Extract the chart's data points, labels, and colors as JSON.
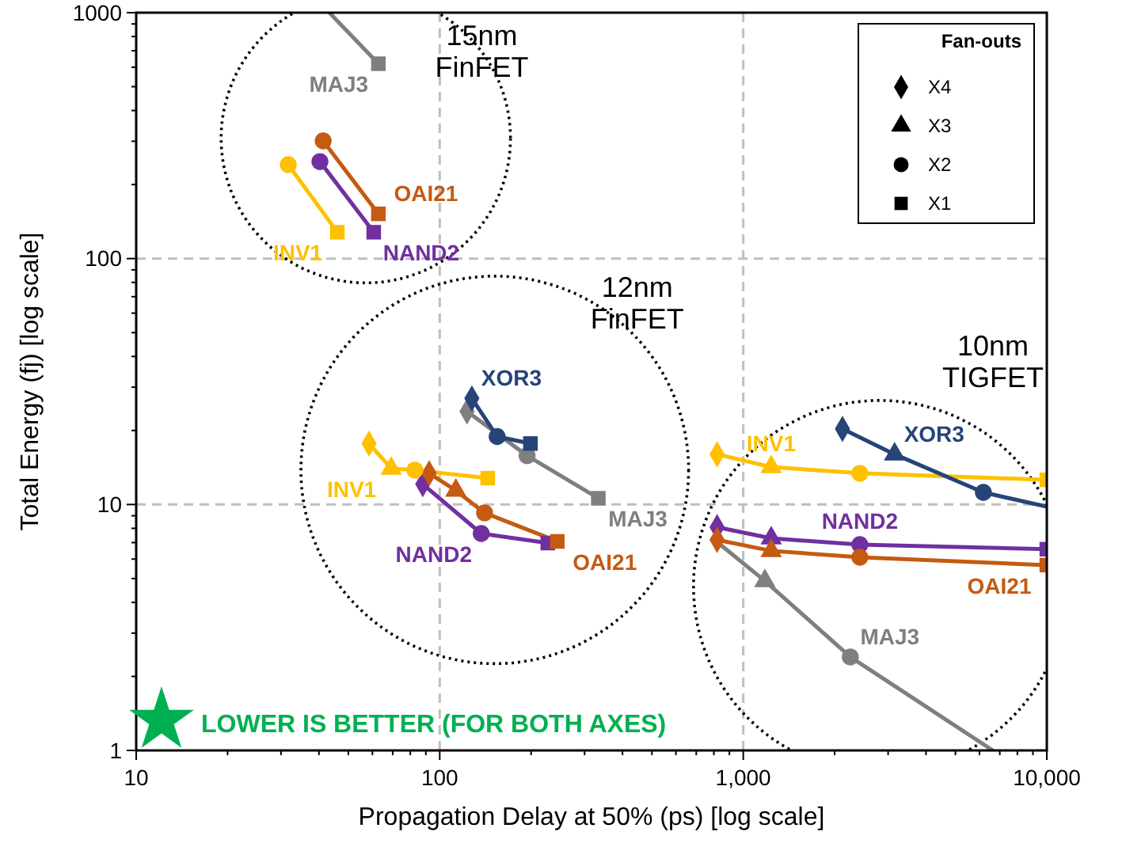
{
  "chart_data": {
    "type": "scatter",
    "xlabel": "Propagation Delay at 50% (ps) [log scale]",
    "ylabel": "Total Energy (fj) [log scale]",
    "legend_title": "Fan-outs",
    "legend": "top right",
    "grid": true,
    "log": "xy",
    "xlim": [
      10,
      10000
    ],
    "ylim": [
      1,
      1000
    ],
    "xticks": [
      10,
      {
        "value": 20,
        "label": null
      },
      {
        "value": 30,
        "label": null
      },
      {
        "value": 40,
        "label": null
      },
      {
        "value": 50,
        "label": null
      },
      {
        "value": 60,
        "label": null
      },
      {
        "value": 70,
        "label": null
      },
      {
        "value": 80,
        "label": null
      },
      {
        "value": 90,
        "label": null
      },
      100,
      {
        "value": 200,
        "label": null
      },
      {
        "value": 300,
        "label": null
      },
      {
        "value": 400,
        "label": null
      },
      {
        "value": 500,
        "label": null
      },
      {
        "value": 600,
        "label": null
      },
      {
        "value": 700,
        "label": null
      },
      {
        "value": 800,
        "label": null
      },
      {
        "value": 900,
        "label": null
      },
      {
        "value": 1000,
        "label": "1,000"
      },
      {
        "value": 2000,
        "label": null
      },
      {
        "value": 3000,
        "label": null
      },
      {
        "value": 4000,
        "label": null
      },
      {
        "value": 5000,
        "label": null
      },
      {
        "value": 6000,
        "label": null
      },
      {
        "value": 7000,
        "label": null
      },
      {
        "value": 8000,
        "label": null
      },
      {
        "value": 9000,
        "label": null
      },
      {
        "value": 10000,
        "label": "10,000"
      }
    ],
    "yticks": [
      1,
      {
        "value": 2,
        "label": null
      },
      {
        "value": 3,
        "label": null
      },
      {
        "value": 4,
        "label": null
      },
      {
        "value": 5,
        "label": null
      },
      {
        "value": 6,
        "label": null
      },
      {
        "value": 7,
        "label": null
      },
      {
        "value": 8,
        "label": null
      },
      {
        "value": 9,
        "label": null
      },
      10,
      {
        "value": 20,
        "label": null
      },
      {
        "value": 30,
        "label": null
      },
      {
        "value": 40,
        "label": null
      },
      {
        "value": 50,
        "label": null
      },
      {
        "value": 60,
        "label": null
      },
      {
        "value": 70,
        "label": null
      },
      {
        "value": 80,
        "label": null
      },
      {
        "value": 90,
        "label": null
      },
      100,
      {
        "value": 200,
        "label": null
      },
      {
        "value": 300,
        "label": null
      },
      {
        "value": 400,
        "label": null
      },
      {
        "value": 500,
        "label": null
      },
      {
        "value": 600,
        "label": null
      },
      {
        "value": 700,
        "label": null
      },
      {
        "value": 800,
        "label": null
      },
      {
        "value": 900,
        "label": null
      },
      1000
    ],
    "series": [
      {
        "type": "line",
        "name": "MAJ3",
        "color": "#7f7f7f",
        "x": [
          43.3,
          62.8
        ],
        "values": [
          1000,
          620
        ]
      },
      {
        "type": "line",
        "name": "OAI21",
        "color": "#c55a11",
        "x": [
          41.3,
          62.8
        ],
        "values": [
          301,
          152
        ]
      },
      {
        "type": "line",
        "name": "INV1",
        "color": "#ffc000",
        "x": [
          31.7,
          46
        ],
        "values": [
          241,
          128
        ]
      },
      {
        "type": "line",
        "name": "NAND2",
        "color": "#7030a0",
        "x": [
          40.3,
          60.6
        ],
        "values": [
          248,
          128
        ]
      },
      {
        "type": "line",
        "name": "MAJ3",
        "color": "#7f7f7f",
        "x": [
          123,
          194,
          333
        ],
        "values": [
          23.9,
          15.8,
          10.6
        ]
      },
      {
        "type": "line",
        "name": "XOR3",
        "color": "#264478",
        "x": [
          127.6,
          154.6,
          199
        ],
        "values": [
          27,
          18.9,
          17.7
        ]
      },
      {
        "type": "line",
        "name": "INV1",
        "color": "#ffc000",
        "x": [
          58.5,
          69.2,
          82.8,
          143.9
        ],
        "values": [
          17.7,
          14,
          13.8,
          12.8
        ]
      },
      {
        "type": "line",
        "name": "NAND2",
        "color": "#7030a0",
        "x": [
          87.9,
          137,
          227
        ],
        "values": [
          12.1,
          7.62,
          6.97
        ]
      },
      {
        "type": "line",
        "name": "OAI21",
        "color": "#c55a11",
        "x": [
          92.3,
          113,
          140.5,
          244
        ],
        "values": [
          13.4,
          11.4,
          9.25,
          7.08
        ]
      },
      {
        "type": "line",
        "name": "INV1",
        "color": "#ffc000",
        "x": [
          820,
          1236,
          2421,
          10000
        ],
        "values": [
          16,
          14.2,
          13.4,
          12.6
        ]
      },
      {
        "type": "line",
        "name": "XOR3",
        "color": "#264478",
        "x": [
          2122,
          3152,
          6180,
          10000
        ],
        "values": [
          20.3,
          16,
          11.2,
          9.8
        ]
      },
      {
        "type": "line",
        "name": "MAJ3",
        "color": "#7f7f7f",
        "x": [
          792,
          1178,
          2252,
          6640
        ],
        "values": [
          7.29,
          4.89,
          2.4,
          1
        ]
      },
      {
        "type": "line",
        "name": "NAND2",
        "color": "#7030a0",
        "x": [
          820,
          1236,
          2421,
          10000
        ],
        "values": [
          8.09,
          7.29,
          6.87,
          6.58
        ]
      },
      {
        "type": "line",
        "name": "OAI21",
        "color": "#c55a11",
        "x": [
          820,
          1236,
          2421,
          10000
        ],
        "values": [
          7.18,
          6.48,
          6.1,
          5.67
        ]
      },
      {
        "marker": "diamond",
        "color": "#000000",
        "x": [
          123,
          127.6,
          58.5,
          87.9,
          92.3,
          820,
          2122,
          820,
          820
        ],
        "values": [
          23.9,
          27,
          17.7,
          12.1,
          13.4,
          16,
          20.3,
          8.09,
          7.18
        ],
        "colors": [
          "#7f7f7f",
          "#264478",
          "#ffc000",
          "#7030a0",
          "#c55a11",
          "#ffc000",
          "#264478",
          "#7030a0",
          "#c55a11"
        ]
      },
      {
        "marker": "triangle",
        "color": "#000000",
        "x": [
          69.2,
          113,
          1236,
          3152,
          1178,
          1236,
          1236
        ],
        "values": [
          14,
          11.4,
          14.2,
          16,
          4.89,
          7.29,
          6.48
        ],
        "colors": [
          "#ffc000",
          "#c55a11",
          "#ffc000",
          "#264478",
          "#7f7f7f",
          "#7030a0",
          "#c55a11"
        ]
      },
      {
        "marker": "circle",
        "color": "#000000",
        "x": [
          41.3,
          31.7,
          40.3,
          194,
          154.6,
          82.8,
          137,
          140.5,
          2421,
          6180,
          2252,
          2421,
          2421
        ],
        "values": [
          301,
          241,
          248,
          15.8,
          18.9,
          13.8,
          7.62,
          9.25,
          13.4,
          11.2,
          2.4,
          6.87,
          6.1
        ],
        "colors": [
          "#c55a11",
          "#ffc000",
          "#7030a0",
          "#7f7f7f",
          "#264478",
          "#ffc000",
          "#7030a0",
          "#c55a11",
          "#ffc000",
          "#264478",
          "#7f7f7f",
          "#7030a0",
          "#c55a11"
        ]
      },
      {
        "marker": "square",
        "color": "#000000",
        "x": [
          62.8,
          62.8,
          46,
          60.6,
          333,
          199,
          143.9,
          227,
          244,
          10000,
          10000,
          10000
        ],
        "values": [
          620,
          152,
          128,
          128,
          10.6,
          17.7,
          12.8,
          6.97,
          7.08,
          12.6,
          6.58,
          5.67
        ],
        "colors": [
          "#7f7f7f",
          "#c55a11",
          "#ffc000",
          "#7030a0",
          "#7f7f7f",
          "#264478",
          "#ffc000",
          "#7030a0",
          "#c55a11",
          "#ffc000",
          "#7030a0",
          "#c55a11"
        ]
      }
    ],
    "annotations": [
      "X4",
      "X3",
      "X2",
      "X1",
      "15nm\nFinFET",
      "12nm\nFinFET",
      "10nm\nTIGFET",
      "LOWER IS BETTER (FOR BOTH AXES)"
    ]
  }
}
